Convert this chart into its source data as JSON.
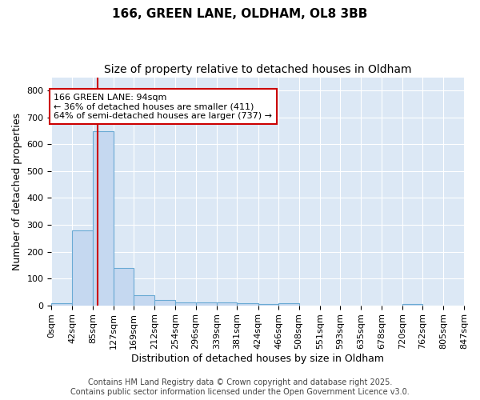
{
  "title": "166, GREEN LANE, OLDHAM, OL8 3BB",
  "subtitle": "Size of property relative to detached houses in Oldham",
  "xlabel": "Distribution of detached houses by size in Oldham",
  "ylabel": "Number of detached properties",
  "bar_edges": [
    0,
    42,
    85,
    127,
    169,
    212,
    254,
    296,
    339,
    381,
    424,
    466,
    508,
    551,
    593,
    635,
    678,
    720,
    762,
    805,
    847
  ],
  "bar_values": [
    8,
    278,
    648,
    140,
    38,
    20,
    12,
    10,
    10,
    8,
    6,
    8,
    0,
    0,
    0,
    0,
    0,
    5,
    0,
    0,
    0
  ],
  "bar_color": "#c5d8f0",
  "bar_edgecolor": "#6aaad4",
  "property_size": 94,
  "red_line_color": "#cc0000",
  "annotation_text": "166 GREEN LANE: 94sqm\n← 36% of detached houses are smaller (411)\n64% of semi-detached houses are larger (737) →",
  "annotation_box_facecolor": "#ffffff",
  "annotation_box_edgecolor": "#cc0000",
  "ylim": [
    0,
    850
  ],
  "yticks": [
    0,
    100,
    200,
    300,
    400,
    500,
    600,
    700,
    800
  ],
  "plot_bg_color": "#dce8f5",
  "fig_bg_color": "#ffffff",
  "grid_color": "#ffffff",
  "footer_lines": [
    "Contains HM Land Registry data © Crown copyright and database right 2025.",
    "Contains public sector information licensed under the Open Government Licence v3.0."
  ],
  "title_fontsize": 11,
  "subtitle_fontsize": 10,
  "xlabel_fontsize": 9,
  "ylabel_fontsize": 9,
  "tick_fontsize": 8,
  "annotation_fontsize": 8,
  "footer_fontsize": 7
}
